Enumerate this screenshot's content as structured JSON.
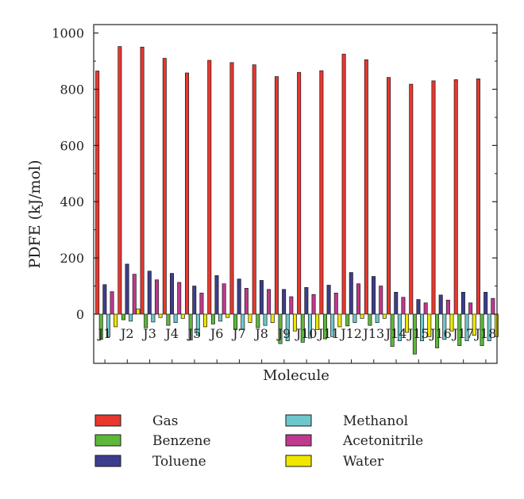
{
  "chart_data": {
    "type": "bar",
    "xlabel": "Molecule",
    "ylabel": "PDFE (kJ/mol)",
    "ylim": [
      -175,
      1030
    ],
    "yticks": [
      0,
      200,
      400,
      600,
      800,
      1000
    ],
    "categories": [
      "J1",
      "J2",
      "J3",
      "J4",
      "J5",
      "J6",
      "J7",
      "J8",
      "J9",
      "J10",
      "J11",
      "J12",
      "J13",
      "J14",
      "J15",
      "J16",
      "J17",
      "J18"
    ],
    "tick_labels": [
      "J1",
      "J2",
      "J3",
      "J4",
      "J5",
      "J6",
      "J7",
      "J8",
      "J9",
      "J10",
      "J11",
      "J12",
      "J13",
      "J14",
      "J15",
      "J16",
      "J17",
      "J18"
    ],
    "grid": false,
    "legend_position": "bottom",
    "series": [
      {
        "name": "Gas",
        "color": "#e8372f",
        "values": [
          865,
          952,
          950,
          910,
          858,
          903,
          895,
          887,
          845,
          860,
          866,
          925,
          905,
          842,
          818,
          830,
          834,
          837
        ]
      },
      {
        "name": "Benzene",
        "color": "#5cb83a",
        "values": [
          -90,
          -20,
          -48,
          -40,
          -92,
          -35,
          -55,
          -48,
          -105,
          -100,
          -88,
          -42,
          -40,
          -115,
          -142,
          -120,
          -112,
          -112
        ]
      },
      {
        "name": "Toluene",
        "color": "#3d3d8f",
        "values": [
          105,
          178,
          153,
          145,
          100,
          137,
          125,
          120,
          88,
          95,
          103,
          148,
          134,
          78,
          52,
          68,
          78,
          78
        ]
      },
      {
        "name": "Methanol",
        "color": "#6cc8cc",
        "values": [
          -80,
          -25,
          -28,
          -30,
          -75,
          -25,
          -55,
          -40,
          -95,
          -85,
          -80,
          -30,
          -30,
          -95,
          -95,
          -90,
          -95,
          -95
        ]
      },
      {
        "name": "Acetonitrile",
        "color": "#c0398f",
        "values": [
          80,
          142,
          122,
          113,
          75,
          108,
          92,
          88,
          62,
          70,
          75,
          108,
          100,
          60,
          40,
          50,
          40,
          56
        ]
      },
      {
        "name": "Water",
        "color": "#f0e600",
        "values": [
          -45,
          18,
          -12,
          -15,
          -45,
          -12,
          -30,
          -30,
          -60,
          -55,
          -45,
          -15,
          -15,
          -65,
          -80,
          -60,
          -75,
          -80
        ]
      }
    ]
  }
}
